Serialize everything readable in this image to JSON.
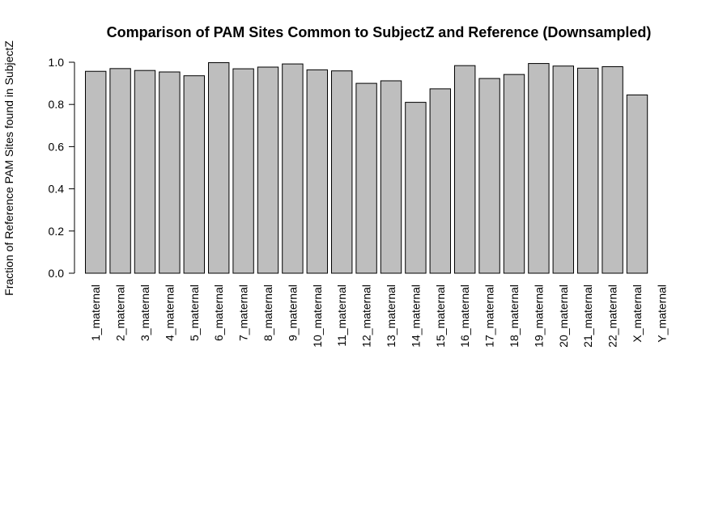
{
  "chart_data": {
    "type": "bar",
    "title": "Comparison of PAM Sites Common to SubjectZ and Reference (Downsampled)",
    "xlabel": "",
    "ylabel": "Fraction of Reference PAM Sites found in SubjectZ",
    "ylim": [
      0,
      1.0
    ],
    "yticks": [
      "0.0",
      "0.2",
      "0.4",
      "0.6",
      "0.8",
      "1.0"
    ],
    "grid": false,
    "legend": "none",
    "bar_color": "#bebebe",
    "bar_edge_color": "#000000",
    "categories": [
      "1_maternal",
      "2_maternal",
      "3_maternal",
      "4_maternal",
      "5_maternal",
      "6_maternal",
      "7_maternal",
      "8_maternal",
      "9_maternal",
      "10_maternal",
      "11_maternal",
      "12_maternal",
      "13_maternal",
      "14_maternal",
      "15_maternal",
      "16_maternal",
      "17_maternal",
      "18_maternal",
      "19_maternal",
      "20_maternal",
      "21_maternal",
      "22_maternal",
      "X_maternal",
      "Y_maternal"
    ],
    "values": [
      0.957,
      0.97,
      0.961,
      0.954,
      0.936,
      0.998,
      0.969,
      0.977,
      0.992,
      0.964,
      0.959,
      0.9,
      0.912,
      0.81,
      0.874,
      0.984,
      0.923,
      0.942,
      0.994,
      0.982,
      0.972,
      0.979,
      0.845,
      0.0
    ]
  }
}
